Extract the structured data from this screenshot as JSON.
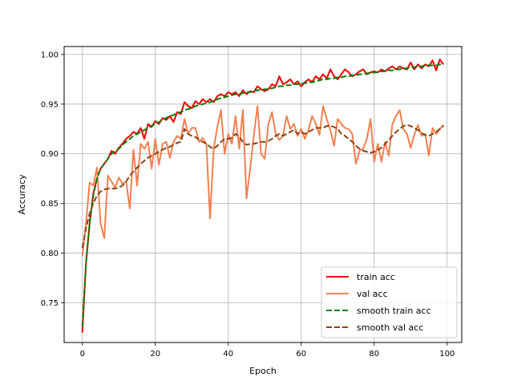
{
  "chart_data": {
    "type": "line",
    "title": "",
    "xlabel": "Epoch",
    "ylabel": "Accuracy",
    "xlim": [
      -5,
      104
    ],
    "ylim": [
      0.71,
      1.008
    ],
    "xticks": [
      0,
      20,
      40,
      60,
      80,
      100
    ],
    "yticks": [
      0.75,
      0.8,
      0.85,
      0.9,
      0.95,
      1.0
    ],
    "xtick_labels": [
      "0",
      "20",
      "40",
      "60",
      "80",
      "100"
    ],
    "ytick_labels": [
      "0.75",
      "0.80",
      "0.85",
      "0.90",
      "0.95",
      "1.00"
    ],
    "grid": true,
    "legend_position": "lower-right",
    "x": [
      0,
      1,
      2,
      3,
      4,
      5,
      6,
      7,
      8,
      9,
      10,
      11,
      12,
      13,
      14,
      15,
      16,
      17,
      18,
      19,
      20,
      21,
      22,
      23,
      24,
      25,
      26,
      27,
      28,
      29,
      30,
      31,
      32,
      33,
      34,
      35,
      36,
      37,
      38,
      39,
      40,
      41,
      42,
      43,
      44,
      45,
      46,
      47,
      48,
      49,
      50,
      51,
      52,
      53,
      54,
      55,
      56,
      57,
      58,
      59,
      60,
      61,
      62,
      63,
      64,
      65,
      66,
      67,
      68,
      69,
      70,
      71,
      72,
      73,
      74,
      75,
      76,
      77,
      78,
      79,
      80,
      81,
      82,
      83,
      84,
      85,
      86,
      87,
      88,
      89,
      90,
      91,
      92,
      93,
      94,
      95,
      96,
      97,
      98,
      99
    ],
    "series": [
      {
        "name": "train acc",
        "color": "#ee0000",
        "dash": "solid",
        "values": [
          0.72,
          0.79,
          0.83,
          0.86,
          0.875,
          0.885,
          0.89,
          0.895,
          0.903,
          0.9,
          0.906,
          0.91,
          0.915,
          0.918,
          0.922,
          0.92,
          0.926,
          0.915,
          0.93,
          0.927,
          0.933,
          0.93,
          0.936,
          0.934,
          0.938,
          0.932,
          0.942,
          0.94,
          0.952,
          0.948,
          0.946,
          0.953,
          0.95,
          0.955,
          0.952,
          0.955,
          0.952,
          0.958,
          0.96,
          0.958,
          0.962,
          0.96,
          0.962,
          0.958,
          0.964,
          0.96,
          0.963,
          0.962,
          0.968,
          0.965,
          0.963,
          0.965,
          0.97,
          0.968,
          0.978,
          0.97,
          0.972,
          0.975,
          0.97,
          0.973,
          0.968,
          0.972,
          0.975,
          0.972,
          0.978,
          0.975,
          0.98,
          0.976,
          0.985,
          0.978,
          0.975,
          0.98,
          0.985,
          0.982,
          0.978,
          0.98,
          0.983,
          0.985,
          0.98,
          0.982,
          0.983,
          0.982,
          0.985,
          0.983,
          0.986,
          0.988,
          0.985,
          0.988,
          0.986,
          0.985,
          0.992,
          0.985,
          0.99,
          0.986,
          0.99,
          0.988,
          0.994,
          0.984,
          0.995,
          0.99
        ]
      },
      {
        "name": "val acc",
        "color": "#f08050",
        "dash": "solid",
        "values": [
          0.797,
          0.83,
          0.871,
          0.868,
          0.886,
          0.83,
          0.815,
          0.878,
          0.872,
          0.866,
          0.876,
          0.87,
          0.872,
          0.845,
          0.904,
          0.868,
          0.91,
          0.905,
          0.912,
          0.885,
          0.915,
          0.889,
          0.91,
          0.912,
          0.896,
          0.912,
          0.918,
          0.915,
          0.935,
          0.92,
          0.926,
          0.926,
          0.912,
          0.916,
          0.91,
          0.835,
          0.905,
          0.927,
          0.944,
          0.9,
          0.92,
          0.91,
          0.938,
          0.905,
          0.944,
          0.855,
          0.885,
          0.918,
          0.948,
          0.9,
          0.895,
          0.93,
          0.942,
          0.92,
          0.914,
          0.918,
          0.938,
          0.925,
          0.93,
          0.918,
          0.925,
          0.915,
          0.924,
          0.938,
          0.93,
          0.919,
          0.948,
          0.935,
          0.924,
          0.908,
          0.935,
          0.93,
          0.926,
          0.925,
          0.92,
          0.89,
          0.903,
          0.905,
          0.915,
          0.935,
          0.892,
          0.91,
          0.892,
          0.912,
          0.898,
          0.93,
          0.938,
          0.944,
          0.925,
          0.92,
          0.906,
          0.919,
          0.929,
          0.918,
          0.92,
          0.898,
          0.926,
          0.92,
          0.925,
          0.929
        ]
      },
      {
        "name": "smooth train acc",
        "color": "#008000",
        "dash": "dashed",
        "values": [
          0.726,
          0.79,
          0.83,
          0.858,
          0.875,
          0.885,
          0.89,
          0.895,
          0.9,
          0.903,
          0.905,
          0.909,
          0.912,
          0.915,
          0.918,
          0.92,
          0.922,
          0.924,
          0.926,
          0.928,
          0.93,
          0.932,
          0.934,
          0.936,
          0.938,
          0.939,
          0.941,
          0.942,
          0.944,
          0.945,
          0.946,
          0.948,
          0.949,
          0.95,
          0.951,
          0.952,
          0.953,
          0.955,
          0.956,
          0.957,
          0.958,
          0.959,
          0.96,
          0.96,
          0.961,
          0.962,
          0.962,
          0.963,
          0.964,
          0.964,
          0.965,
          0.965,
          0.966,
          0.967,
          0.968,
          0.968,
          0.969,
          0.969,
          0.97,
          0.97,
          0.971,
          0.971,
          0.972,
          0.972,
          0.973,
          0.974,
          0.975,
          0.975,
          0.976,
          0.976,
          0.977,
          0.977,
          0.978,
          0.978,
          0.979,
          0.979,
          0.98,
          0.98,
          0.981,
          0.981,
          0.982,
          0.982,
          0.983,
          0.983,
          0.984,
          0.984,
          0.985,
          0.985,
          0.986,
          0.986,
          0.987,
          0.987,
          0.988,
          0.988,
          0.989,
          0.989,
          0.989,
          0.989,
          0.99,
          0.99
        ]
      },
      {
        "name": "smooth val acc",
        "color": "#8b4513",
        "dash": "dashed",
        "values": [
          0.805,
          0.825,
          0.84,
          0.85,
          0.858,
          0.862,
          0.864,
          0.865,
          0.865,
          0.865,
          0.866,
          0.868,
          0.872,
          0.878,
          0.882,
          0.886,
          0.89,
          0.893,
          0.896,
          0.898,
          0.9,
          0.902,
          0.904,
          0.906,
          0.907,
          0.909,
          0.911,
          0.912,
          0.925,
          0.92,
          0.918,
          0.917,
          0.914,
          0.912,
          0.91,
          0.907,
          0.905,
          0.908,
          0.912,
          0.915,
          0.915,
          0.916,
          0.92,
          0.917,
          0.912,
          0.909,
          0.91,
          0.91,
          0.911,
          0.912,
          0.912,
          0.913,
          0.915,
          0.918,
          0.92,
          0.918,
          0.92,
          0.922,
          0.924,
          0.92,
          0.922,
          0.92,
          0.922,
          0.924,
          0.926,
          0.926,
          0.926,
          0.928,
          0.928,
          0.927,
          0.925,
          0.92,
          0.918,
          0.915,
          0.912,
          0.908,
          0.905,
          0.903,
          0.902,
          0.901,
          0.902,
          0.904,
          0.906,
          0.91,
          0.914,
          0.918,
          0.922,
          0.925,
          0.928,
          0.929,
          0.928,
          0.926,
          0.924,
          0.921,
          0.919,
          0.918,
          0.92,
          0.922,
          0.925,
          0.928
        ]
      }
    ]
  }
}
